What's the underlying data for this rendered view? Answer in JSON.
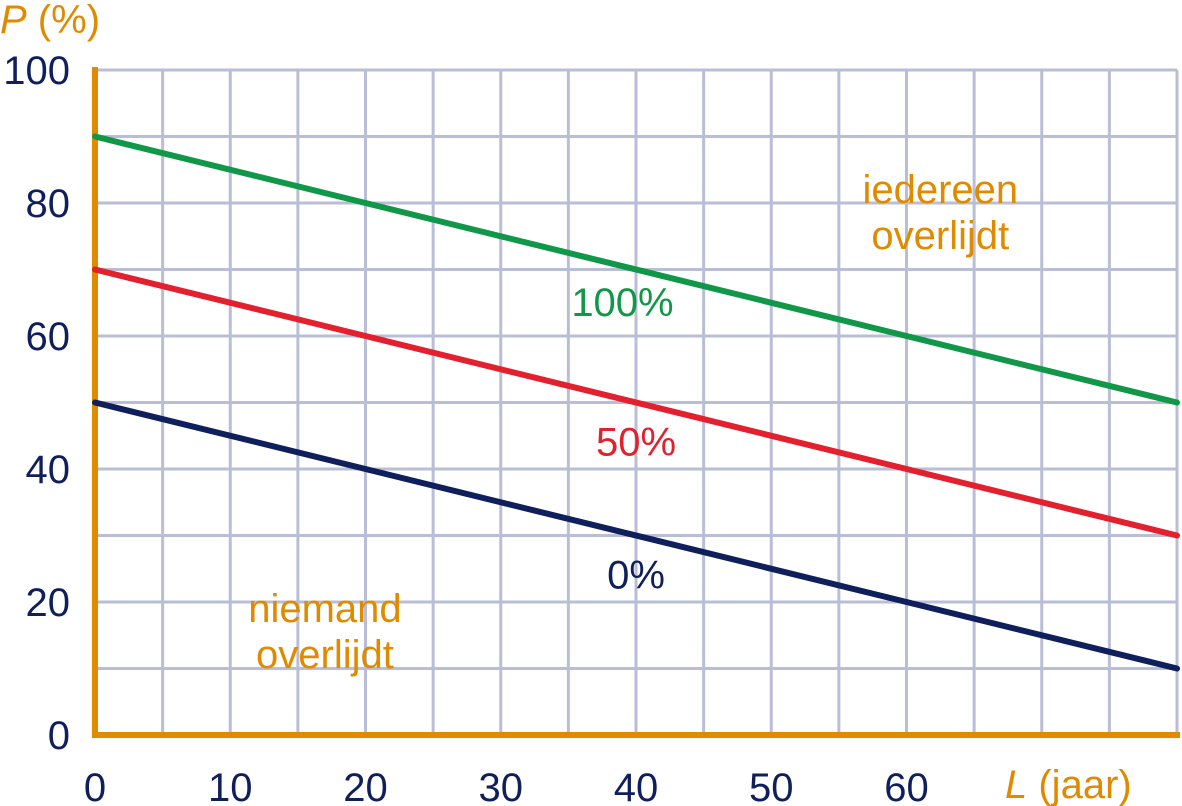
{
  "chart_data": {
    "type": "line",
    "x_axis": {
      "var": "L",
      "unit": " (jaar)",
      "range": [
        0,
        80
      ],
      "ticks": [
        0,
        10,
        20,
        30,
        40,
        50,
        60
      ],
      "tick_labels": [
        "0",
        "10",
        "20",
        "30",
        "40",
        "50",
        "60"
      ],
      "grid_step": 5
    },
    "y_axis": {
      "var": "P",
      "unit": " (%)",
      "range": [
        0,
        100
      ],
      "ticks": [
        0,
        20,
        40,
        60,
        80,
        100
      ],
      "tick_labels": [
        "0",
        "20",
        "40",
        "60",
        "80",
        "100"
      ],
      "grid_step": 10
    },
    "grid": true,
    "series": [
      {
        "name": "100%",
        "color": "#119748",
        "x": [
          0,
          80
        ],
        "y": [
          90,
          50
        ]
      },
      {
        "name": "50%",
        "color": "#e3202d",
        "x": [
          0,
          80
        ],
        "y": [
          70,
          30
        ]
      },
      {
        "name": "0%",
        "color": "#0f1f5c",
        "x": [
          0,
          80
        ],
        "y": [
          50,
          10
        ]
      }
    ],
    "annotations": [
      {
        "lines": [
          "iedereen",
          "overlijdt"
        ],
        "x": 62.5,
        "y": 80,
        "color": "#e08a00"
      },
      {
        "lines": [
          "niemand",
          "overlijdt"
        ],
        "x": 17,
        "y": 17,
        "color": "#e08a00"
      }
    ],
    "series_label_positions": [
      {
        "x": 39,
        "y": 63
      },
      {
        "x": 40,
        "y": 42
      },
      {
        "x": 40,
        "y": 22
      }
    ]
  }
}
